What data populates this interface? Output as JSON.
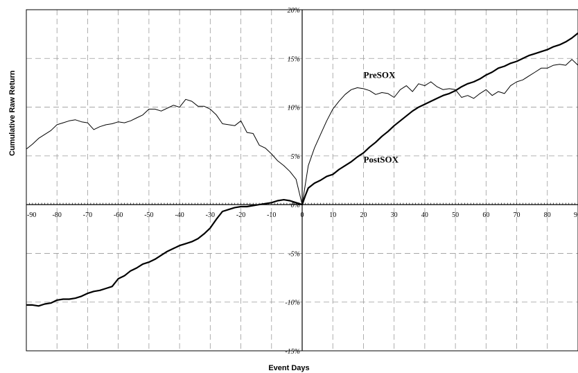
{
  "chart_data": {
    "type": "line",
    "xlabel": "Event Days",
    "ylabel": "Cumulative Raw Return",
    "xlim": [
      -90,
      90
    ],
    "ylim": [
      -15,
      20
    ],
    "x_ticks": [
      -90,
      -80,
      -70,
      -60,
      -50,
      -40,
      -30,
      -20,
      -10,
      0,
      10,
      20,
      30,
      40,
      50,
      60,
      70,
      80,
      90
    ],
    "x_tick_labels": [
      "-90",
      "-80",
      "-70",
      "-60",
      "-50",
      "-40",
      "-30",
      "-20",
      "-10",
      "0",
      "10",
      "20",
      "30",
      "40",
      "50",
      "60",
      "70",
      "80",
      "90"
    ],
    "y_ticks": [
      -15,
      -10,
      -5,
      0,
      5,
      10,
      15,
      20
    ],
    "y_tick_labels": [
      "-15%",
      "-10%",
      "-5%",
      "0%",
      "5%",
      "10%",
      "15%",
      "20%"
    ],
    "grid": true,
    "series": [
      {
        "name": "PreSOX",
        "label_at": [
          20,
          13.0
        ],
        "x": [
          -90,
          -88,
          -86,
          -84,
          -82,
          -80,
          -78,
          -76,
          -74,
          -72,
          -70,
          -68,
          -66,
          -64,
          -62,
          -60,
          -58,
          -56,
          -54,
          -52,
          -50,
          -48,
          -46,
          -44,
          -42,
          -40,
          -38,
          -36,
          -34,
          -32,
          -30,
          -28,
          -26,
          -24,
          -22,
          -20,
          -18,
          -16,
          -14,
          -12,
          -10,
          -8,
          -6,
          -4,
          -2,
          0,
          1,
          2,
          4,
          6,
          8,
          10,
          12,
          14,
          16,
          18,
          20,
          22,
          24,
          26,
          28,
          30,
          32,
          34,
          36,
          38,
          40,
          42,
          44,
          46,
          48,
          50,
          52,
          54,
          56,
          58,
          60,
          62,
          64,
          66,
          68,
          70,
          72,
          74,
          76,
          78,
          80,
          82,
          84,
          86,
          88,
          90
        ],
        "values": [
          5.7,
          6.2,
          6.8,
          7.2,
          7.6,
          8.2,
          8.4,
          8.6,
          8.7,
          8.5,
          8.4,
          7.7,
          8.0,
          8.2,
          8.3,
          8.5,
          8.4,
          8.6,
          8.9,
          9.2,
          9.8,
          9.8,
          9.6,
          9.9,
          10.2,
          10.0,
          10.8,
          10.6,
          10.1,
          10.1,
          9.8,
          9.2,
          8.3,
          8.2,
          8.1,
          8.6,
          7.4,
          7.3,
          6.1,
          5.8,
          5.2,
          4.5,
          4.0,
          3.4,
          2.6,
          0.0,
          2.0,
          4.0,
          5.8,
          7.2,
          8.6,
          9.8,
          10.6,
          11.3,
          11.8,
          12.0,
          11.9,
          11.7,
          11.3,
          11.5,
          11.4,
          11.0,
          11.8,
          12.2,
          11.6,
          12.4,
          12.2,
          12.6,
          12.1,
          11.8,
          11.9,
          11.8,
          11.0,
          11.2,
          10.9,
          11.4,
          11.8,
          11.2,
          11.6,
          11.4,
          12.2,
          12.6,
          12.8,
          13.2,
          13.6,
          14.0,
          14.0,
          14.3,
          14.4,
          14.3,
          14.9,
          14.3
        ]
      },
      {
        "name": "PostSOX",
        "label_at": [
          20,
          4.3
        ],
        "x": [
          -90,
          -88,
          -86,
          -84,
          -82,
          -80,
          -78,
          -76,
          -74,
          -72,
          -70,
          -68,
          -66,
          -64,
          -62,
          -60,
          -58,
          -56,
          -54,
          -52,
          -50,
          -48,
          -46,
          -44,
          -42,
          -40,
          -38,
          -36,
          -34,
          -32,
          -30,
          -28,
          -26,
          -24,
          -22,
          -20,
          -18,
          -16,
          -14,
          -12,
          -10,
          -8,
          -6,
          -4,
          -2,
          0,
          1,
          2,
          4,
          6,
          8,
          10,
          12,
          14,
          16,
          18,
          20,
          22,
          24,
          26,
          28,
          30,
          32,
          34,
          36,
          38,
          40,
          42,
          44,
          46,
          48,
          50,
          52,
          54,
          56,
          58,
          60,
          62,
          64,
          66,
          68,
          70,
          72,
          74,
          76,
          78,
          80,
          82,
          84,
          86,
          88,
          90
        ],
        "values": [
          -10.3,
          -10.3,
          -10.4,
          -10.2,
          -10.1,
          -9.8,
          -9.7,
          -9.7,
          -9.6,
          -9.4,
          -9.1,
          -8.9,
          -8.8,
          -8.6,
          -8.4,
          -7.6,
          -7.3,
          -6.8,
          -6.5,
          -6.1,
          -5.9,
          -5.6,
          -5.2,
          -4.8,
          -4.5,
          -4.2,
          -4.0,
          -3.8,
          -3.5,
          -3.0,
          -2.4,
          -1.5,
          -0.7,
          -0.5,
          -0.3,
          -0.2,
          -0.2,
          -0.1,
          0.0,
          0.1,
          0.2,
          0.4,
          0.5,
          0.4,
          0.2,
          0.0,
          0.9,
          1.7,
          2.2,
          2.5,
          2.9,
          3.1,
          3.6,
          4.0,
          4.4,
          4.9,
          5.3,
          5.9,
          6.4,
          7.0,
          7.5,
          8.1,
          8.6,
          9.1,
          9.6,
          10.0,
          10.3,
          10.6,
          10.9,
          11.2,
          11.4,
          11.7,
          12.1,
          12.4,
          12.6,
          12.9,
          13.3,
          13.6,
          14.0,
          14.2,
          14.5,
          14.7,
          15.0,
          15.3,
          15.5,
          15.7,
          15.9,
          16.2,
          16.4,
          16.7,
          17.1,
          17.6
        ]
      }
    ]
  }
}
